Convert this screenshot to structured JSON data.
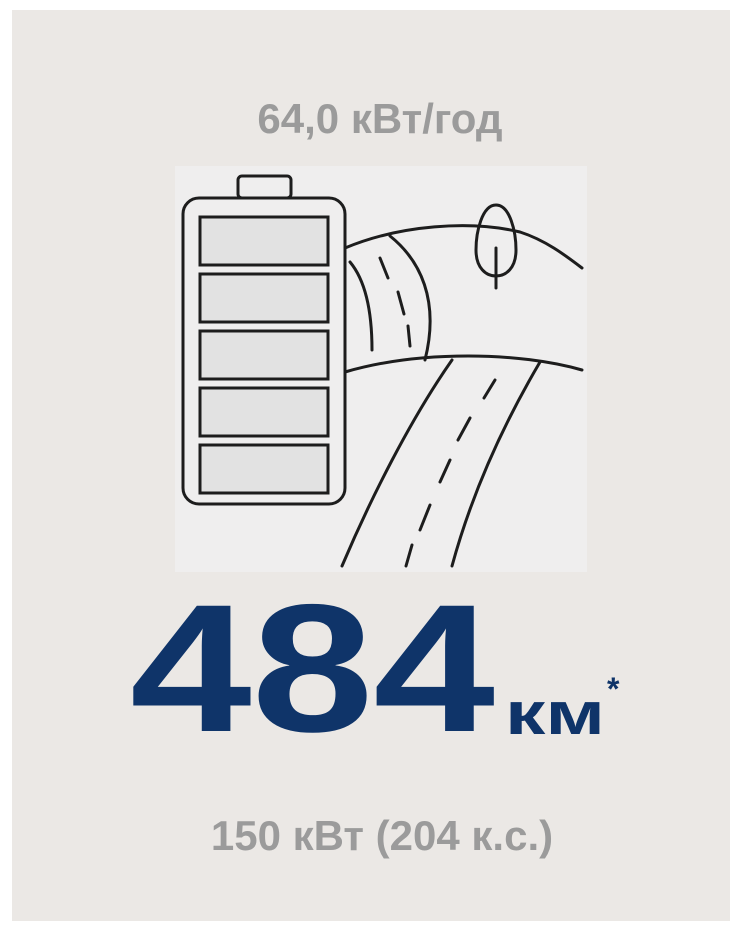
{
  "header": {
    "capacity": "64,0 кВт/год"
  },
  "range": {
    "value": "484",
    "unit": "км",
    "note_mark": "*"
  },
  "footer": {
    "power": "150 кВт (204 к.с.)"
  }
}
